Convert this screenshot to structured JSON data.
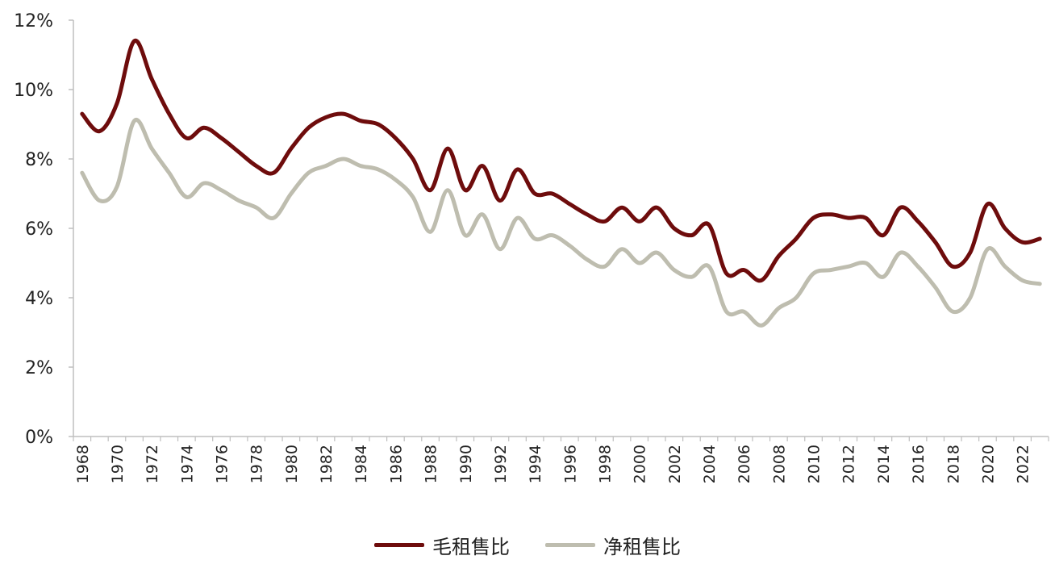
{
  "chart_data": {
    "type": "line",
    "title": "",
    "xlabel": "",
    "ylabel": "",
    "x": [
      1968,
      1969,
      1970,
      1971,
      1972,
      1973,
      1974,
      1975,
      1976,
      1977,
      1978,
      1979,
      1980,
      1981,
      1982,
      1983,
      1984,
      1985,
      1986,
      1987,
      1988,
      1989,
      1990,
      1991,
      1992,
      1993,
      1994,
      1995,
      1996,
      1997,
      1998,
      1999,
      2000,
      2001,
      2002,
      2003,
      2004,
      2005,
      2006,
      2007,
      2008,
      2009,
      2010,
      2011,
      2012,
      2013,
      2014,
      2015,
      2016,
      2017,
      2018,
      2019,
      2020,
      2021,
      2022,
      2023
    ],
    "x_tick_labels": [
      "1968",
      "1970",
      "1972",
      "1974",
      "1976",
      "1978",
      "1980",
      "1982",
      "1984",
      "1986",
      "1988",
      "1990",
      "1992",
      "1994",
      "1996",
      "1998",
      "2000",
      "2002",
      "2004",
      "2006",
      "2008",
      "2010",
      "2012",
      "2014",
      "2016",
      "2018",
      "2020",
      "2022"
    ],
    "y_tick_labels": [
      "0%",
      "2%",
      "4%",
      "6%",
      "8%",
      "10%",
      "12%"
    ],
    "ylim": [
      0,
      12
    ],
    "grid": false,
    "legend_position": "bottom-center",
    "series": [
      {
        "name": "毛租售比",
        "color": "#6e0c0c",
        "values": [
          9.3,
          8.8,
          9.6,
          11.4,
          10.3,
          9.3,
          8.6,
          8.9,
          8.6,
          8.2,
          7.8,
          7.6,
          8.3,
          8.9,
          9.2,
          9.3,
          9.1,
          9.0,
          8.6,
          8.0,
          7.1,
          8.3,
          7.1,
          7.8,
          6.8,
          7.7,
          7.0,
          7.0,
          6.7,
          6.4,
          6.2,
          6.6,
          6.2,
          6.6,
          6.0,
          5.8,
          6.1,
          4.7,
          4.8,
          4.5,
          5.2,
          5.7,
          6.3,
          6.4,
          6.3,
          6.3,
          5.8,
          6.6,
          6.2,
          5.6,
          4.9,
          5.3,
          6.7,
          6.0,
          5.6,
          5.7
        ]
      },
      {
        "name": "净租售比",
        "color": "#bebdaf",
        "values": [
          7.6,
          6.8,
          7.2,
          9.1,
          8.3,
          7.6,
          6.9,
          7.3,
          7.1,
          6.8,
          6.6,
          6.3,
          7.0,
          7.6,
          7.8,
          8.0,
          7.8,
          7.7,
          7.4,
          6.9,
          5.9,
          7.1,
          5.8,
          6.4,
          5.4,
          6.3,
          5.7,
          5.8,
          5.5,
          5.1,
          4.9,
          5.4,
          5.0,
          5.3,
          4.8,
          4.6,
          4.9,
          3.6,
          3.6,
          3.2,
          3.7,
          4.0,
          4.7,
          4.8,
          4.9,
          5.0,
          4.6,
          5.3,
          4.9,
          4.3,
          3.6,
          4.0,
          5.4,
          4.9,
          4.5,
          4.4
        ]
      }
    ]
  }
}
